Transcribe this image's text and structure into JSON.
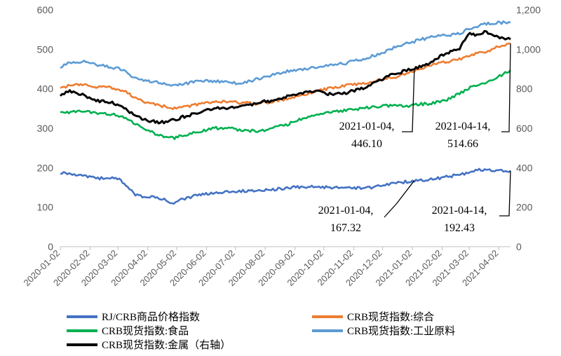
{
  "chart_data": {
    "type": "line",
    "title": "",
    "x_range": [
      "2020-01-02",
      "2021-04-14"
    ],
    "x_tick_labels": [
      "2020-01-02",
      "2020-02-02",
      "2020-03-02",
      "2020-04-02",
      "2020-05-02",
      "2020-06-02",
      "2020-07-02",
      "2020-08-02",
      "2020-09-02",
      "2020-10-02",
      "2020-11-02",
      "2020-12-02",
      "2021-01-02",
      "2021-02-02",
      "2021-03-02",
      "2021-04-02"
    ],
    "y_left": {
      "min": 0,
      "max": 600,
      "ticks": [
        "0",
        "100",
        "200",
        "300",
        "400",
        "500",
        "600"
      ]
    },
    "y_right": {
      "min": 0,
      "max": 1200,
      "ticks": [
        "0",
        "200",
        "400",
        "600",
        "800",
        "1,000",
        "1,200"
      ]
    },
    "grid": false,
    "legend_position": "bottom",
    "series": [
      {
        "name": "RJ/CRB商品价格指数",
        "color": "#4472C4",
        "axis": "left",
        "x": [
          "2020-01-02",
          "2020-01-20",
          "2020-02-10",
          "2020-02-25",
          "2020-03-05",
          "2020-03-12",
          "2020-03-20",
          "2020-03-31",
          "2020-04-10",
          "2020-04-21",
          "2020-04-27",
          "2020-05-05",
          "2020-05-20",
          "2020-06-05",
          "2020-06-20",
          "2020-07-06",
          "2020-07-25",
          "2020-08-10",
          "2020-08-25",
          "2020-09-10",
          "2020-09-25",
          "2020-10-10",
          "2020-10-30",
          "2020-11-15",
          "2020-12-01",
          "2020-12-20",
          "2021-01-04",
          "2021-01-25",
          "2021-02-10",
          "2021-02-25",
          "2021-03-05",
          "2021-03-20",
          "2021-04-01",
          "2021-04-14"
        ],
        "y": [
          188,
          183,
          172,
          176,
          168,
          150,
          130,
          125,
          126,
          118,
          110,
          118,
          128,
          135,
          138,
          141,
          143,
          145,
          149,
          152,
          151,
          149,
          150,
          148,
          156,
          162,
          167.32,
          172,
          178,
          185,
          193,
          195,
          192,
          192.43
        ]
      },
      {
        "name": "CRB现货指数:综合",
        "color": "#ED7D31",
        "axis": "right",
        "x": [
          "2020-01-02",
          "2020-01-10",
          "2020-01-25",
          "2020-02-10",
          "2020-02-25",
          "2020-03-10",
          "2020-03-20",
          "2020-04-01",
          "2020-04-15",
          "2020-04-28",
          "2020-05-10",
          "2020-05-25",
          "2020-06-10",
          "2020-06-25",
          "2020-07-10",
          "2020-07-25",
          "2020-08-10",
          "2020-08-25",
          "2020-09-10",
          "2020-09-25",
          "2020-10-10",
          "2020-10-25",
          "2020-11-10",
          "2020-11-25",
          "2020-12-10",
          "2020-12-25",
          "2021-01-04",
          "2021-01-20",
          "2021-02-05",
          "2021-02-20",
          "2021-03-05",
          "2021-03-20",
          "2021-04-01",
          "2021-04-14"
        ],
        "y": [
          800,
          815,
          820,
          810,
          805,
          790,
          750,
          730,
          715,
          700,
          710,
          720,
          735,
          735,
          728,
          725,
          735,
          750,
          770,
          790,
          805,
          815,
          825,
          840,
          855,
          870,
          892.2,
          920,
          935,
          950,
          975,
          985,
          1015,
          1029.3
        ]
      },
      {
        "name": "CRB现货指数:食品",
        "color": "#00B050",
        "axis": "right",
        "x": [
          "2020-01-02",
          "2020-01-25",
          "2020-02-10",
          "2020-02-25",
          "2020-03-10",
          "2020-03-20",
          "2020-04-01",
          "2020-04-15",
          "2020-04-28",
          "2020-05-10",
          "2020-05-25",
          "2020-06-10",
          "2020-06-25",
          "2020-07-10",
          "2020-07-25",
          "2020-08-10",
          "2020-08-25",
          "2020-09-10",
          "2020-09-25",
          "2020-10-10",
          "2020-10-25",
          "2020-11-10",
          "2020-11-25",
          "2020-12-10",
          "2020-12-25",
          "2021-01-04",
          "2021-01-20",
          "2021-02-05",
          "2021-02-20",
          "2021-03-05",
          "2021-03-20",
          "2021-04-01",
          "2021-04-14"
        ],
        "y": [
          680,
          685,
          675,
          670,
          650,
          620,
          590,
          560,
          550,
          565,
          580,
          600,
          600,
          590,
          585,
          600,
          620,
          650,
          670,
          680,
          690,
          700,
          710,
          715,
          710,
          720,
          725,
          740,
          775,
          810,
          830,
          860,
          895
        ]
      },
      {
        "name": "CRB现货指数:工业原料",
        "color": "#5B9BD5",
        "axis": "right",
        "x": [
          "2020-01-02",
          "2020-01-10",
          "2020-01-25",
          "2020-02-10",
          "2020-02-25",
          "2020-03-10",
          "2020-03-20",
          "2020-04-01",
          "2020-04-15",
          "2020-04-28",
          "2020-05-10",
          "2020-05-25",
          "2020-06-10",
          "2020-06-25",
          "2020-07-10",
          "2020-07-25",
          "2020-08-10",
          "2020-08-25",
          "2020-09-10",
          "2020-09-25",
          "2020-10-10",
          "2020-10-25",
          "2020-11-10",
          "2020-11-25",
          "2020-12-10",
          "2020-12-25",
          "2021-01-04",
          "2021-01-20",
          "2021-02-05",
          "2021-02-20",
          "2021-03-05",
          "2021-03-20",
          "2021-04-01",
          "2021-04-14"
        ],
        "y": [
          910,
          930,
          940,
          920,
          910,
          890,
          850,
          840,
          830,
          820,
          825,
          840,
          840,
          830,
          830,
          850,
          870,
          890,
          900,
          910,
          920,
          930,
          950,
          970,
          1000,
          1030,
          1040,
          1060,
          1070,
          1080,
          1110,
          1130,
          1135,
          1135
        ]
      },
      {
        "name": "CRB现货指数:金属（右轴）",
        "color": "#000000",
        "axis": "right",
        "x": [
          "2020-01-02",
          "2020-01-10",
          "2020-01-25",
          "2020-02-10",
          "2020-02-25",
          "2020-03-10",
          "2020-03-20",
          "2020-04-01",
          "2020-04-15",
          "2020-04-28",
          "2020-05-10",
          "2020-05-25",
          "2020-06-10",
          "2020-06-25",
          "2020-07-10",
          "2020-07-25",
          "2020-08-10",
          "2020-08-25",
          "2020-09-10",
          "2020-09-25",
          "2020-10-10",
          "2020-10-25",
          "2020-11-10",
          "2020-11-25",
          "2020-12-10",
          "2020-12-25",
          "2021-01-04",
          "2021-01-20",
          "2021-02-05",
          "2021-02-20",
          "2021-03-01",
          "2021-03-10",
          "2021-03-20",
          "2021-04-01",
          "2021-04-14"
        ],
        "y": [
          760,
          790,
          770,
          740,
          730,
          700,
          660,
          640,
          630,
          640,
          660,
          680,
          700,
          700,
          710,
          730,
          740,
          760,
          780,
          790,
          770,
          780,
          800,
          830,
          870,
          890,
          900,
          930,
          980,
          1000,
          1080,
          1070,
          1090,
          1060,
          1050
        ]
      }
    ],
    "annotations": [
      {
        "date": "2021-01-04",
        "label": "2021-01-04,",
        "value": "446.10"
      },
      {
        "date": "2021-04-14",
        "label": "2021-04-14,",
        "value": "514.66"
      },
      {
        "date": "2021-01-04",
        "label": "2021-01-04,",
        "value": "167.32"
      },
      {
        "date": "2021-04-14",
        "label": "2021-04-14,",
        "value": "192.43"
      }
    ]
  }
}
